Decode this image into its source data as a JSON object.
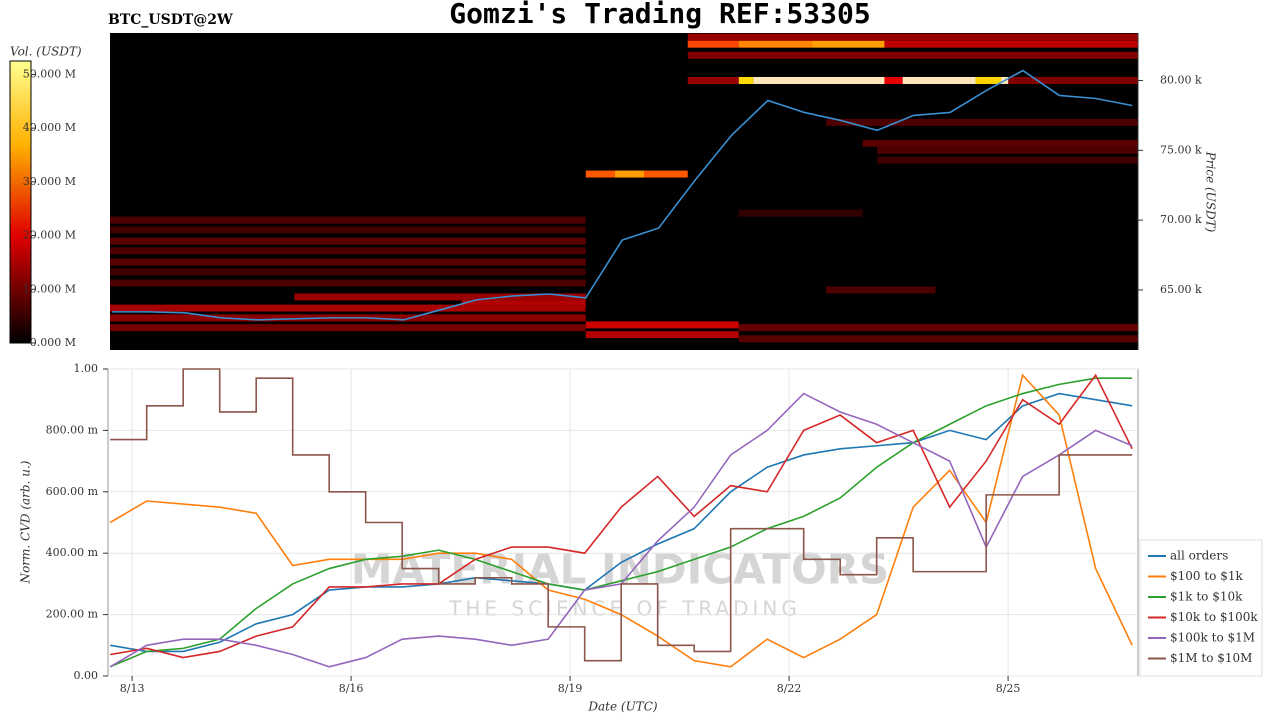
{
  "title": "Gomzi's Trading REF:53305",
  "watermark": [
    "MATERIAL INDICATORS",
    "THE SCIENCE OF TRADING"
  ],
  "chart_data": [
    {
      "type": "heatmap",
      "title": "BTC_USDT@2W",
      "y_label": "Price (USDT)",
      "colorbar_label": "Vol. (USDT)",
      "xlim": [
        12.67,
        26.78
      ],
      "ylim": [
        60700,
        83400
      ],
      "yticks": [
        {
          "value": 65000,
          "label": "65.00 k"
        },
        {
          "value": 70000,
          "label": "70.00 k"
        },
        {
          "value": 75000,
          "label": "75.00 k"
        },
        {
          "value": 80000,
          "label": "80.00 k"
        }
      ],
      "colorbar_lim": [
        0,
        52500000
      ],
      "colorbar_ticks": [
        {
          "value": 0,
          "label": "0.000 M"
        },
        {
          "value": 10000000,
          "label": "10.000 M"
        },
        {
          "value": 20000000,
          "label": "20.000 M"
        },
        {
          "value": 30000000,
          "label": "30.000 M"
        },
        {
          "value": 40000000,
          "label": "40.000 M"
        },
        {
          "value": 50000000,
          "label": "50.000 M"
        }
      ],
      "cells": [
        {
          "x": [
            12.67,
            19.2
          ],
          "price": 70000,
          "volume": 6000000
        },
        {
          "x": [
            12.67,
            19.2
          ],
          "price": 69300,
          "volume": 5000000
        },
        {
          "x": [
            12.67,
            19.2
          ],
          "price": 68500,
          "volume": 7000000
        },
        {
          "x": [
            12.67,
            19.2
          ],
          "price": 67800,
          "volume": 6000000
        },
        {
          "x": [
            12.67,
            19.2
          ],
          "price": 67000,
          "volume": 7000000
        },
        {
          "x": [
            12.67,
            19.2
          ],
          "price": 66300,
          "volume": 5000000
        },
        {
          "x": [
            12.67,
            19.2
          ],
          "price": 65500,
          "volume": 6000000
        },
        {
          "x": [
            15.2,
            19.2
          ],
          "price": 64500,
          "volume": 12000000
        },
        {
          "x": [
            17.5,
            19.2
          ],
          "price": 64000,
          "volume": 14000000
        },
        {
          "x": [
            12.67,
            19.2
          ],
          "price": 63700,
          "volume": 13000000
        },
        {
          "x": [
            12.67,
            19.2
          ],
          "price": 63000,
          "volume": 11000000
        },
        {
          "x": [
            12.67,
            19.2
          ],
          "price": 62300,
          "volume": 9000000
        },
        {
          "x": [
            19.2,
            21.3
          ],
          "price": 62500,
          "volume": 16000000
        },
        {
          "x": [
            19.2,
            21.3
          ],
          "price": 61800,
          "volume": 14000000
        },
        {
          "x": [
            21.3,
            26.78
          ],
          "price": 62300,
          "volume": 8000000
        },
        {
          "x": [
            21.3,
            26.78
          ],
          "price": 61500,
          "volume": 7000000
        },
        {
          "x": [
            19.2,
            19.6
          ],
          "price": 73300,
          "volume": 30000000
        },
        {
          "x": [
            19.6,
            20.0
          ],
          "price": 73300,
          "volume": 38000000
        },
        {
          "x": [
            20.0,
            20.6
          ],
          "price": 73300,
          "volume": 30000000
        },
        {
          "x": [
            20.6,
            21.3
          ],
          "price": 82600,
          "volume": 28000000
        },
        {
          "x": [
            21.3,
            22.3
          ],
          "price": 82600,
          "volume": 35000000
        },
        {
          "x": [
            22.3,
            23.3
          ],
          "price": 82600,
          "volume": 38000000
        },
        {
          "x": [
            23.3,
            26.78
          ],
          "price": 82600,
          "volume": 15000000
        },
        {
          "x": [
            20.6,
            26.78
          ],
          "price": 81800,
          "volume": 10000000
        },
        {
          "x": [
            20.6,
            26.78
          ],
          "price": 83100,
          "volume": 12000000
        },
        {
          "x": [
            20.6,
            21.3
          ],
          "price": 80000,
          "volume": 12000000
        },
        {
          "x": [
            21.3,
            21.5
          ],
          "price": 80000,
          "volume": 45000000
        },
        {
          "x": [
            21.5,
            23.3
          ],
          "price": 80000,
          "volume": 52000000
        },
        {
          "x": [
            23.3,
            23.55
          ],
          "price": 80000,
          "volume": 18000000
        },
        {
          "x": [
            23.55,
            24.55
          ],
          "price": 80000,
          "volume": 52000000
        },
        {
          "x": [
            24.55,
            24.9
          ],
          "price": 80000,
          "volume": 44000000
        },
        {
          "x": [
            24.9,
            25.0
          ],
          "price": 80000,
          "volume": 52000000
        },
        {
          "x": [
            25.0,
            26.78
          ],
          "price": 80000,
          "volume": 10000000
        },
        {
          "x": [
            22.5,
            26.78
          ],
          "price": 77000,
          "volume": 6000000
        },
        {
          "x": [
            23.0,
            26.78
          ],
          "price": 75500,
          "volume": 7000000
        },
        {
          "x": [
            23.2,
            26.78
          ],
          "price": 75000,
          "volume": 6000000
        },
        {
          "x": [
            23.2,
            26.78
          ],
          "price": 74300,
          "volume": 5000000
        },
        {
          "x": [
            22.5,
            24.0
          ],
          "price": 65000,
          "volume": 6000000
        },
        {
          "x": [
            21.3,
            23.0
          ],
          "price": 70500,
          "volume": 4000000
        }
      ],
      "price_line": {
        "color": "#3a8fd0",
        "x": [
          12.7,
          13.2,
          13.7,
          14.2,
          14.7,
          15.2,
          15.7,
          16.2,
          16.7,
          17.2,
          17.7,
          18.2,
          18.7,
          19.2,
          19.7,
          20.2,
          20.7,
          21.2,
          21.7,
          22.2,
          22.7,
          23.2,
          23.7,
          24.2,
          24.7,
          25.2,
          25.7,
          26.2,
          26.7
        ],
        "values": [
          63430,
          63430,
          63360,
          63000,
          62860,
          62930,
          63000,
          63000,
          62860,
          63570,
          64290,
          64570,
          64710,
          64430,
          68570,
          69430,
          72860,
          76070,
          78570,
          77710,
          77140,
          76430,
          77500,
          77710,
          79290,
          80710,
          78930,
          78710,
          78210
        ]
      }
    },
    {
      "type": "line",
      "x_label": "Date (UTC)",
      "y_label": "Norm. CVD (arb. u.)",
      "xlim": [
        12.67,
        26.78
      ],
      "ylim": [
        0,
        1
      ],
      "xticks": [
        {
          "value": 13,
          "label": "8/13"
        },
        {
          "value": 16,
          "label": "8/16"
        },
        {
          "value": 19,
          "label": "8/19"
        },
        {
          "value": 22,
          "label": "8/22"
        },
        {
          "value": 25,
          "label": "8/25"
        }
      ],
      "yticks": [
        {
          "value": 0,
          "label": "0.00"
        },
        {
          "value": 0.2,
          "label": "200.00 m"
        },
        {
          "value": 0.4,
          "label": "400.00 m"
        },
        {
          "value": 0.6,
          "label": "600.00 m"
        },
        {
          "value": 0.8,
          "label": "800.00 m"
        },
        {
          "value": 1,
          "label": "1.00"
        }
      ],
      "grid": true,
      "legend": "lower right",
      "x": [
        12.7,
        13.2,
        13.7,
        14.2,
        14.7,
        15.2,
        15.7,
        16.2,
        16.7,
        17.2,
        17.7,
        18.2,
        18.7,
        19.2,
        19.7,
        20.2,
        20.7,
        21.2,
        21.7,
        22.2,
        22.7,
        23.2,
        23.7,
        24.2,
        24.7,
        25.2,
        25.7,
        26.2,
        26.7
      ],
      "series": [
        {
          "name": "all orders",
          "color": "#1f77b4",
          "values": [
            0.1,
            0.08,
            0.08,
            0.11,
            0.17,
            0.2,
            0.28,
            0.29,
            0.29,
            0.3,
            0.32,
            0.31,
            0.3,
            0.28,
            0.37,
            0.43,
            0.48,
            0.6,
            0.68,
            0.72,
            0.74,
            0.75,
            0.76,
            0.8,
            0.77,
            0.88,
            0.92,
            0.9,
            0.88
          ]
        },
        {
          "name": "$100 to $1k",
          "color": "#ff7f0e",
          "values": [
            0.5,
            0.57,
            0.56,
            0.55,
            0.53,
            0.36,
            0.38,
            0.38,
            0.38,
            0.4,
            0.4,
            0.38,
            0.28,
            0.25,
            0.2,
            0.13,
            0.05,
            0.03,
            0.12,
            0.06,
            0.12,
            0.2,
            0.55,
            0.67,
            0.5,
            0.98,
            0.85,
            0.35,
            0.1
          ]
        },
        {
          "name": "$1k to $10k",
          "color": "#2ca02c",
          "values": [
            0.03,
            0.08,
            0.09,
            0.12,
            0.22,
            0.3,
            0.35,
            0.38,
            0.39,
            0.41,
            0.38,
            0.34,
            0.3,
            0.28,
            0.31,
            0.34,
            0.38,
            0.42,
            0.48,
            0.52,
            0.58,
            0.68,
            0.76,
            0.82,
            0.88,
            0.92,
            0.95,
            0.97,
            0.97
          ]
        },
        {
          "name": "$10k to $100k",
          "color": "#d62728",
          "values": [
            0.07,
            0.09,
            0.06,
            0.08,
            0.13,
            0.16,
            0.29,
            0.29,
            0.3,
            0.3,
            0.38,
            0.42,
            0.42,
            0.4,
            0.55,
            0.65,
            0.52,
            0.62,
            0.6,
            0.8,
            0.85,
            0.76,
            0.8,
            0.55,
            0.7,
            0.9,
            0.82,
            0.98,
            0.74
          ]
        },
        {
          "name": "$100k to $1M",
          "color": "#9467bd",
          "values": [
            0.03,
            0.1,
            0.12,
            0.12,
            0.1,
            0.07,
            0.03,
            0.06,
            0.12,
            0.13,
            0.12,
            0.1,
            0.12,
            0.28,
            0.3,
            0.44,
            0.55,
            0.72,
            0.8,
            0.92,
            0.86,
            0.82,
            0.76,
            0.7,
            0.42,
            0.65,
            0.72,
            0.8,
            0.75
          ]
        },
        {
          "name": "$1M to $10M",
          "color": "#8c564b",
          "step": true,
          "values": [
            0.77,
            0.88,
            1.0,
            0.86,
            0.97,
            0.72,
            0.6,
            0.5,
            0.35,
            0.3,
            0.32,
            0.3,
            0.16,
            0.05,
            0.3,
            0.1,
            0.08,
            0.48,
            0.48,
            0.38,
            0.33,
            0.45,
            0.34,
            0.34,
            0.59,
            0.59,
            0.72,
            0.72,
            0.72
          ]
        }
      ]
    }
  ]
}
